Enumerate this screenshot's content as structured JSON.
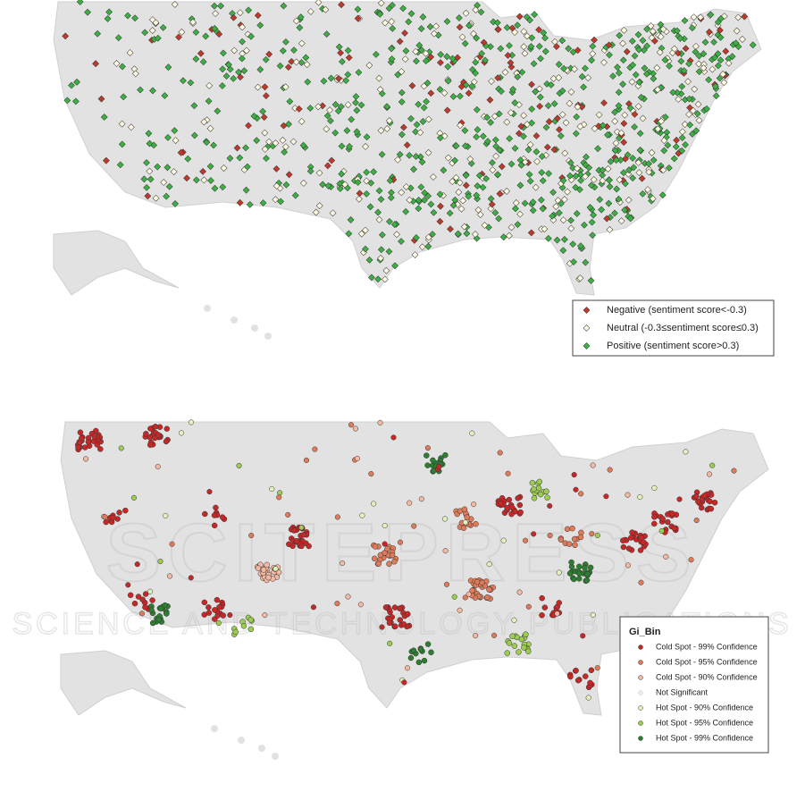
{
  "maps": [
    {
      "legend": [
        {
          "label": "Negative (sentiment score<-0.3)",
          "color": "#c0392b"
        },
        {
          "label": "Neutral (-0.3≤sentiment score≤0.3)",
          "color": "#fff8e0"
        },
        {
          "label": "Positive (sentiment score>0.3)",
          "color": "#3cb043"
        }
      ]
    },
    {
      "legend_title": "Gi_Bin",
      "legend": [
        {
          "label": "Cold Spot - 99% Confidence",
          "color": "#c62828"
        },
        {
          "label": "Cold Spot - 95% Confidence",
          "color": "#e07b5a"
        },
        {
          "label": "Cold Spot - 90% Confidence",
          "color": "#f3b9a2"
        },
        {
          "label": "Not Significant",
          "color": "#eeeeee"
        },
        {
          "label": "Hot Spot - 90% Confidence",
          "color": "#e2f2bd"
        },
        {
          "label": "Hot Spot - 95% Confidence",
          "color": "#9ccc50"
        },
        {
          "label": "Hot Spot - 99% Confidence",
          "color": "#2e7d32"
        }
      ]
    }
  ],
  "watermark": {
    "title": "SCITEPRESS",
    "subtitle": "SCIENCE AND TECHNOLOGY PUBLICATIONS"
  }
}
